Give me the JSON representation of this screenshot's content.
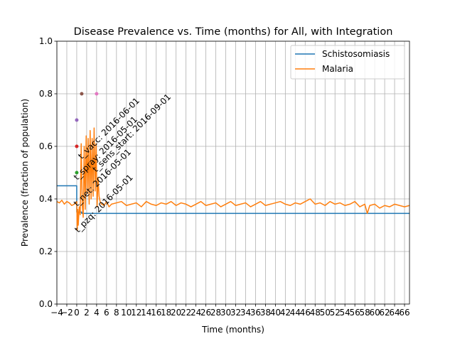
{
  "chart_data": {
    "type": "line",
    "title": "Disease Prevalence vs. Time (months) for All, with Integration",
    "xlabel": "Time (months)",
    "ylabel": "Prevalence (fraction of population)",
    "xlim": [
      -4,
      67
    ],
    "ylim": [
      0,
      1.0
    ],
    "x_ticks": [
      -4,
      -2,
      0,
      2,
      4,
      6,
      8,
      10,
      12,
      14,
      16,
      18,
      20,
      22,
      24,
      26,
      28,
      30,
      32,
      34,
      36,
      38,
      40,
      42,
      44,
      46,
      48,
      50,
      52,
      54,
      56,
      58,
      60,
      62,
      64,
      66
    ],
    "x_tick_labels": [
      "−4",
      "−2",
      "0",
      "2",
      "4",
      "6",
      "8",
      "10",
      "12",
      "14",
      "16",
      "18",
      "20",
      "22",
      "24",
      "26",
      "28",
      "30",
      "32",
      "34",
      "36",
      "38",
      "40",
      "42",
      "44",
      "46",
      "48",
      "50",
      "52",
      "54",
      "56",
      "58",
      "60",
      "62",
      "64",
      "66"
    ],
    "y_ticks": [
      0,
      0.2,
      0.4,
      0.6,
      0.8,
      1.0
    ],
    "y_tick_labels": [
      "0.0",
      "0.2",
      "0.4",
      "0.6",
      "0.8",
      "1.0"
    ],
    "grid": true,
    "legend": {
      "placement": "top-right"
    },
    "series": [
      {
        "name": "Schistosomiasis",
        "color": "#1f77b4",
        "style": "step",
        "x": [
          -4,
          0,
          0,
          1,
          1,
          67
        ],
        "y": [
          0.45,
          0.45,
          0.35,
          0.35,
          0.345,
          0.345
        ]
      },
      {
        "name": "Malaria",
        "color": "#ff7f0e",
        "style": "line",
        "x": [
          -4,
          -3.5,
          -3,
          -2.5,
          -2,
          -1.5,
          -1,
          -0.5,
          0,
          0.1,
          0.2,
          0.3,
          0.5,
          0.7,
          0.9,
          1.1,
          1.3,
          1.5,
          1.7,
          1.9,
          2.1,
          2.3,
          2.5,
          2.7,
          2.9,
          3.1,
          3.3,
          3.5,
          3.7,
          3.9,
          4.1,
          4.3,
          4.5,
          4.7,
          5,
          5.5,
          6,
          6.5,
          7,
          8,
          9,
          10,
          11,
          12,
          13,
          14,
          15,
          16,
          17,
          18,
          19,
          20,
          21,
          22,
          23,
          24,
          25,
          26,
          27,
          28,
          29,
          30,
          31,
          32,
          33,
          34,
          35,
          36,
          37,
          38,
          39,
          40,
          41,
          42,
          43,
          44,
          45,
          46,
          47,
          48,
          49,
          50,
          51,
          52,
          53,
          54,
          55,
          56,
          57,
          58,
          58.5,
          59,
          60,
          61,
          62,
          63,
          64,
          65,
          66,
          67
        ],
        "y": [
          0.39,
          0.385,
          0.395,
          0.38,
          0.39,
          0.385,
          0.375,
          0.38,
          0.39,
          0.28,
          0.36,
          0.3,
          0.37,
          0.34,
          0.61,
          0.38,
          0.33,
          0.6,
          0.36,
          0.64,
          0.42,
          0.63,
          0.38,
          0.66,
          0.4,
          0.63,
          0.41,
          0.67,
          0.43,
          0.61,
          0.37,
          0.48,
          0.41,
          0.39,
          0.38,
          0.375,
          0.39,
          0.37,
          0.38,
          0.385,
          0.39,
          0.375,
          0.38,
          0.385,
          0.37,
          0.39,
          0.38,
          0.375,
          0.385,
          0.38,
          0.39,
          0.375,
          0.385,
          0.38,
          0.37,
          0.38,
          0.39,
          0.375,
          0.38,
          0.385,
          0.37,
          0.38,
          0.39,
          0.375,
          0.38,
          0.385,
          0.37,
          0.38,
          0.39,
          0.375,
          0.38,
          0.385,
          0.39,
          0.38,
          0.375,
          0.385,
          0.38,
          0.39,
          0.4,
          0.38,
          0.385,
          0.375,
          0.39,
          0.38,
          0.385,
          0.375,
          0.38,
          0.39,
          0.37,
          0.38,
          0.345,
          0.375,
          0.38,
          0.365,
          0.375,
          0.37,
          0.38,
          0.375,
          0.37,
          0.375
        ]
      }
    ],
    "event_markers": [
      {
        "x": 0,
        "y": 0.5,
        "color": "#2ca02c"
      },
      {
        "x": 0,
        "y": 0.6,
        "color": "#d62728"
      },
      {
        "x": 0,
        "y": 0.7,
        "color": "#9467bd"
      },
      {
        "x": 1,
        "y": 0.8,
        "color": "#8c564b"
      },
      {
        "x": 4,
        "y": 0.8,
        "color": "#e377c2"
      }
    ],
    "annotations": [
      {
        "text": "t_pzq: 2016-05-01",
        "x": 0.3,
        "y": 0.27
      },
      {
        "text": "t_net: 2016-05-01",
        "x": 0.1,
        "y": 0.37
      },
      {
        "text": "t_spray: 2016-05-01",
        "x": 0.1,
        "y": 0.47
      },
      {
        "text": "t_vacc: 2016-06-01",
        "x": 1.0,
        "y": 0.55
      },
      {
        "text": "t_sens_start: 2016-09-01",
        "x": 3.9,
        "y": 0.5
      }
    ]
  }
}
